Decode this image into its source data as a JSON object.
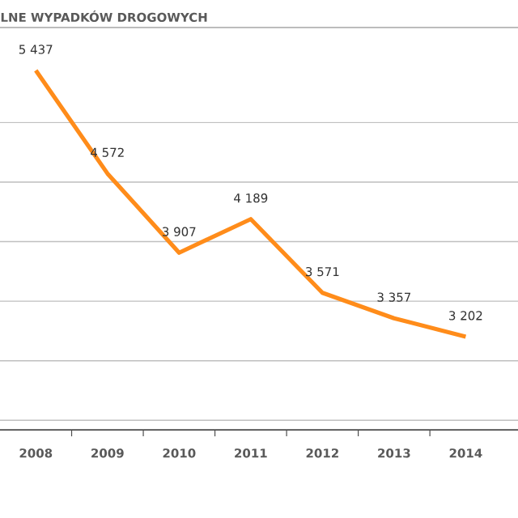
{
  "chart_data": {
    "type": "line",
    "title": "LNE WYPADKÓW DROGOWYCH",
    "categories": [
      "2008",
      "2009",
      "2010",
      "2011",
      "2012",
      "2013",
      "2014"
    ],
    "series": [
      {
        "color": "#ff8c1a",
        "values": [
          5437,
          4572,
          3907,
          4189,
          3571,
          3357,
          3202
        ],
        "value_labels": [
          "5 437",
          "4 572",
          "3 907",
          "4 189",
          "3 571",
          "3 357",
          "3 202"
        ]
      }
    ],
    "grid": "y",
    "tick_labels": "x",
    "marker": "none",
    "line_style": "solid"
  }
}
